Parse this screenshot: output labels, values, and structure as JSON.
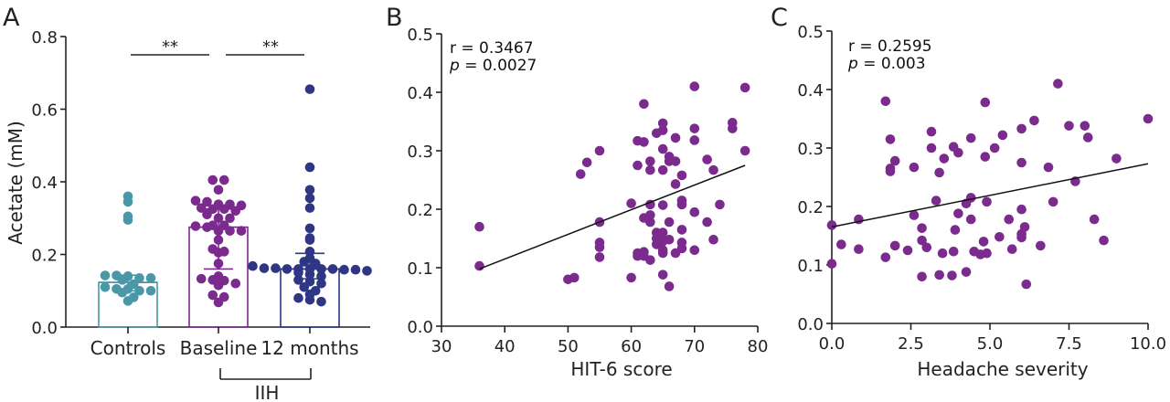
{
  "colors": {
    "controls": "#4a97a8",
    "baseline": "#7b2a8e",
    "months12": "#2f3684",
    "scatter": "#7b2a8e"
  },
  "chart_data": [
    {
      "panel": "A",
      "type": "bar",
      "ylabel": "Acetate (mM)",
      "ylim": [
        0,
        0.8
      ],
      "yticks": [
        "0.0",
        "0.2",
        "0.4",
        "0.6",
        "0.8"
      ],
      "categories": [
        "Controls",
        "Baseline",
        "12 months"
      ],
      "group_label": "IIH",
      "significance": [
        "**",
        "**"
      ],
      "bars": [
        {
          "name": "Controls",
          "mean": 0.123,
          "err": [
            0.1,
            0.143
          ],
          "points": [
            0.36,
            0.345,
            0.305,
            0.295,
            0.142,
            0.142,
            0.14,
            0.135,
            0.135,
            0.13,
            0.118,
            0.11,
            0.105,
            0.105,
            0.1,
            0.1,
            0.095,
            0.082,
            0.072
          ]
        },
        {
          "name": "Baseline",
          "mean": 0.275,
          "err": [
            0.16,
            0.325
          ],
          "points": [
            0.405,
            0.405,
            0.378,
            0.348,
            0.345,
            0.338,
            0.338,
            0.335,
            0.328,
            0.325,
            0.325,
            0.32,
            0.31,
            0.3,
            0.3,
            0.28,
            0.28,
            0.278,
            0.275,
            0.265,
            0.265,
            0.265,
            0.24,
            0.215,
            0.208,
            0.205,
            0.175,
            0.14,
            0.133,
            0.13,
            0.128,
            0.12,
            0.115,
            0.088,
            0.083,
            0.068
          ]
        },
        {
          "name": "12 months",
          "mean": 0.16,
          "err": [
            0.133,
            0.203
          ],
          "points": [
            0.655,
            0.44,
            0.378,
            0.355,
            0.328,
            0.272,
            0.245,
            0.24,
            0.208,
            0.19,
            0.18,
            0.175,
            0.168,
            0.162,
            0.162,
            0.16,
            0.16,
            0.16,
            0.16,
            0.16,
            0.158,
            0.158,
            0.155,
            0.15,
            0.145,
            0.14,
            0.13,
            0.125,
            0.12,
            0.11,
            0.1,
            0.09,
            0.08,
            0.075,
            0.07
          ]
        }
      ]
    },
    {
      "panel": "B",
      "type": "scatter",
      "xlabel": "HIT-6 score",
      "ylabel": "",
      "xlim": [
        30,
        80
      ],
      "ylim": [
        0,
        0.5
      ],
      "xticks": [
        "30",
        "40",
        "50",
        "60",
        "70",
        "80"
      ],
      "yticks": [
        "0.0",
        "0.1",
        "0.2",
        "0.3",
        "0.4",
        "0.5"
      ],
      "annotation_r": "r = 0.3467",
      "annotation_p_sym": "p",
      "annotation_p_val": " = 0.0027",
      "fit_line": [
        [
          36,
          0.098
        ],
        [
          78,
          0.275
        ]
      ],
      "points": [
        [
          36,
          0.17
        ],
        [
          36,
          0.103
        ],
        [
          50,
          0.08
        ],
        [
          51,
          0.083
        ],
        [
          52,
          0.26
        ],
        [
          53,
          0.28
        ],
        [
          55,
          0.3
        ],
        [
          55,
          0.178
        ],
        [
          55,
          0.143
        ],
        [
          55,
          0.135
        ],
        [
          55,
          0.118
        ],
        [
          60,
          0.21
        ],
        [
          60,
          0.083
        ],
        [
          61,
          0.317
        ],
        [
          61,
          0.275
        ],
        [
          61,
          0.125
        ],
        [
          61,
          0.12
        ],
        [
          62,
          0.38
        ],
        [
          62,
          0.315
        ],
        [
          62,
          0.185
        ],
        [
          62,
          0.127
        ],
        [
          62,
          0.12
        ],
        [
          63,
          0.282
        ],
        [
          63,
          0.267
        ],
        [
          63,
          0.208
        ],
        [
          63,
          0.19
        ],
        [
          63,
          0.178
        ],
        [
          63,
          0.113
        ],
        [
          64,
          0.33
        ],
        [
          64,
          0.16
        ],
        [
          64,
          0.15
        ],
        [
          64,
          0.14
        ],
        [
          65,
          0.347
        ],
        [
          65,
          0.335
        ],
        [
          65,
          0.303
        ],
        [
          65,
          0.267
        ],
        [
          65,
          0.207
        ],
        [
          65,
          0.16
        ],
        [
          65,
          0.145
        ],
        [
          65,
          0.13
        ],
        [
          65,
          0.125
        ],
        [
          65,
          0.088
        ],
        [
          66,
          0.29
        ],
        [
          66,
          0.282
        ],
        [
          66,
          0.178
        ],
        [
          66,
          0.148
        ],
        [
          66,
          0.068
        ],
        [
          67,
          0.322
        ],
        [
          67,
          0.282
        ],
        [
          67,
          0.243
        ],
        [
          67,
          0.125
        ],
        [
          68,
          0.258
        ],
        [
          68,
          0.215
        ],
        [
          68,
          0.208
        ],
        [
          68,
          0.165
        ],
        [
          68,
          0.143
        ],
        [
          68,
          0.133
        ],
        [
          70,
          0.41
        ],
        [
          70,
          0.338
        ],
        [
          70,
          0.318
        ],
        [
          70,
          0.195
        ],
        [
          70,
          0.13
        ],
        [
          72,
          0.285
        ],
        [
          72,
          0.178
        ],
        [
          73,
          0.267
        ],
        [
          73,
          0.148
        ],
        [
          74,
          0.208
        ],
        [
          76,
          0.348
        ],
        [
          76,
          0.338
        ],
        [
          78,
          0.408
        ],
        [
          78,
          0.3
        ]
      ]
    },
    {
      "panel": "C",
      "type": "scatter",
      "xlabel": "Headache severity",
      "ylabel": "",
      "xlim": [
        0,
        10
      ],
      "ylim": [
        0,
        0.5
      ],
      "xticks": [
        "0.0",
        "2.5",
        "5.0",
        "7.5",
        "10.0"
      ],
      "yticks": [
        "0.0",
        "0.1",
        "0.2",
        "0.3",
        "0.4",
        "0.5"
      ],
      "annotation_r": "r = 0.2595",
      "annotation_p_sym": "p",
      "annotation_p_val": " = 0.003",
      "fit_line": [
        [
          0,
          0.165
        ],
        [
          10,
          0.273
        ]
      ],
      "points": [
        [
          0,
          0.168
        ],
        [
          0,
          0.102
        ],
        [
          0.3,
          0.135
        ],
        [
          0.85,
          0.178
        ],
        [
          0.85,
          0.127
        ],
        [
          1.7,
          0.38
        ],
        [
          1.7,
          0.113
        ],
        [
          1.85,
          0.315
        ],
        [
          1.85,
          0.265
        ],
        [
          1.85,
          0.26
        ],
        [
          2,
          0.278
        ],
        [
          2,
          0.133
        ],
        [
          2.4,
          0.125
        ],
        [
          2.6,
          0.267
        ],
        [
          2.6,
          0.185
        ],
        [
          2.85,
          0.163
        ],
        [
          2.85,
          0.142
        ],
        [
          2.85,
          0.08
        ],
        [
          3,
          0.13
        ],
        [
          3.15,
          0.328
        ],
        [
          3.15,
          0.3
        ],
        [
          3.3,
          0.21
        ],
        [
          3.4,
          0.258
        ],
        [
          3.4,
          0.083
        ],
        [
          3.5,
          0.12
        ],
        [
          3.55,
          0.282
        ],
        [
          3.8,
          0.082
        ],
        [
          3.85,
          0.302
        ],
        [
          3.85,
          0.123
        ],
        [
          3.9,
          0.16
        ],
        [
          4,
          0.292
        ],
        [
          4,
          0.188
        ],
        [
          4.25,
          0.205
        ],
        [
          4.25,
          0.088
        ],
        [
          4.4,
          0.317
        ],
        [
          4.4,
          0.215
        ],
        [
          4.4,
          0.178
        ],
        [
          4.5,
          0.123
        ],
        [
          4.7,
          0.118
        ],
        [
          4.8,
          0.14
        ],
        [
          4.85,
          0.378
        ],
        [
          4.85,
          0.285
        ],
        [
          4.9,
          0.208
        ],
        [
          4.9,
          0.12
        ],
        [
          5.15,
          0.3
        ],
        [
          5.3,
          0.148
        ],
        [
          5.4,
          0.322
        ],
        [
          5.6,
          0.178
        ],
        [
          5.7,
          0.127
        ],
        [
          6,
          0.333
        ],
        [
          6,
          0.275
        ],
        [
          6,
          0.195
        ],
        [
          6,
          0.153
        ],
        [
          6,
          0.147
        ],
        [
          6.1,
          0.165
        ],
        [
          6.15,
          0.067
        ],
        [
          6.4,
          0.347
        ],
        [
          6.6,
          0.133
        ],
        [
          6.85,
          0.267
        ],
        [
          7,
          0.208
        ],
        [
          7.15,
          0.41
        ],
        [
          7.5,
          0.338
        ],
        [
          7.7,
          0.243
        ],
        [
          8,
          0.338
        ],
        [
          8.1,
          0.318
        ],
        [
          8.3,
          0.178
        ],
        [
          8.6,
          0.142
        ],
        [
          9,
          0.282
        ],
        [
          10,
          0.35
        ]
      ]
    }
  ]
}
